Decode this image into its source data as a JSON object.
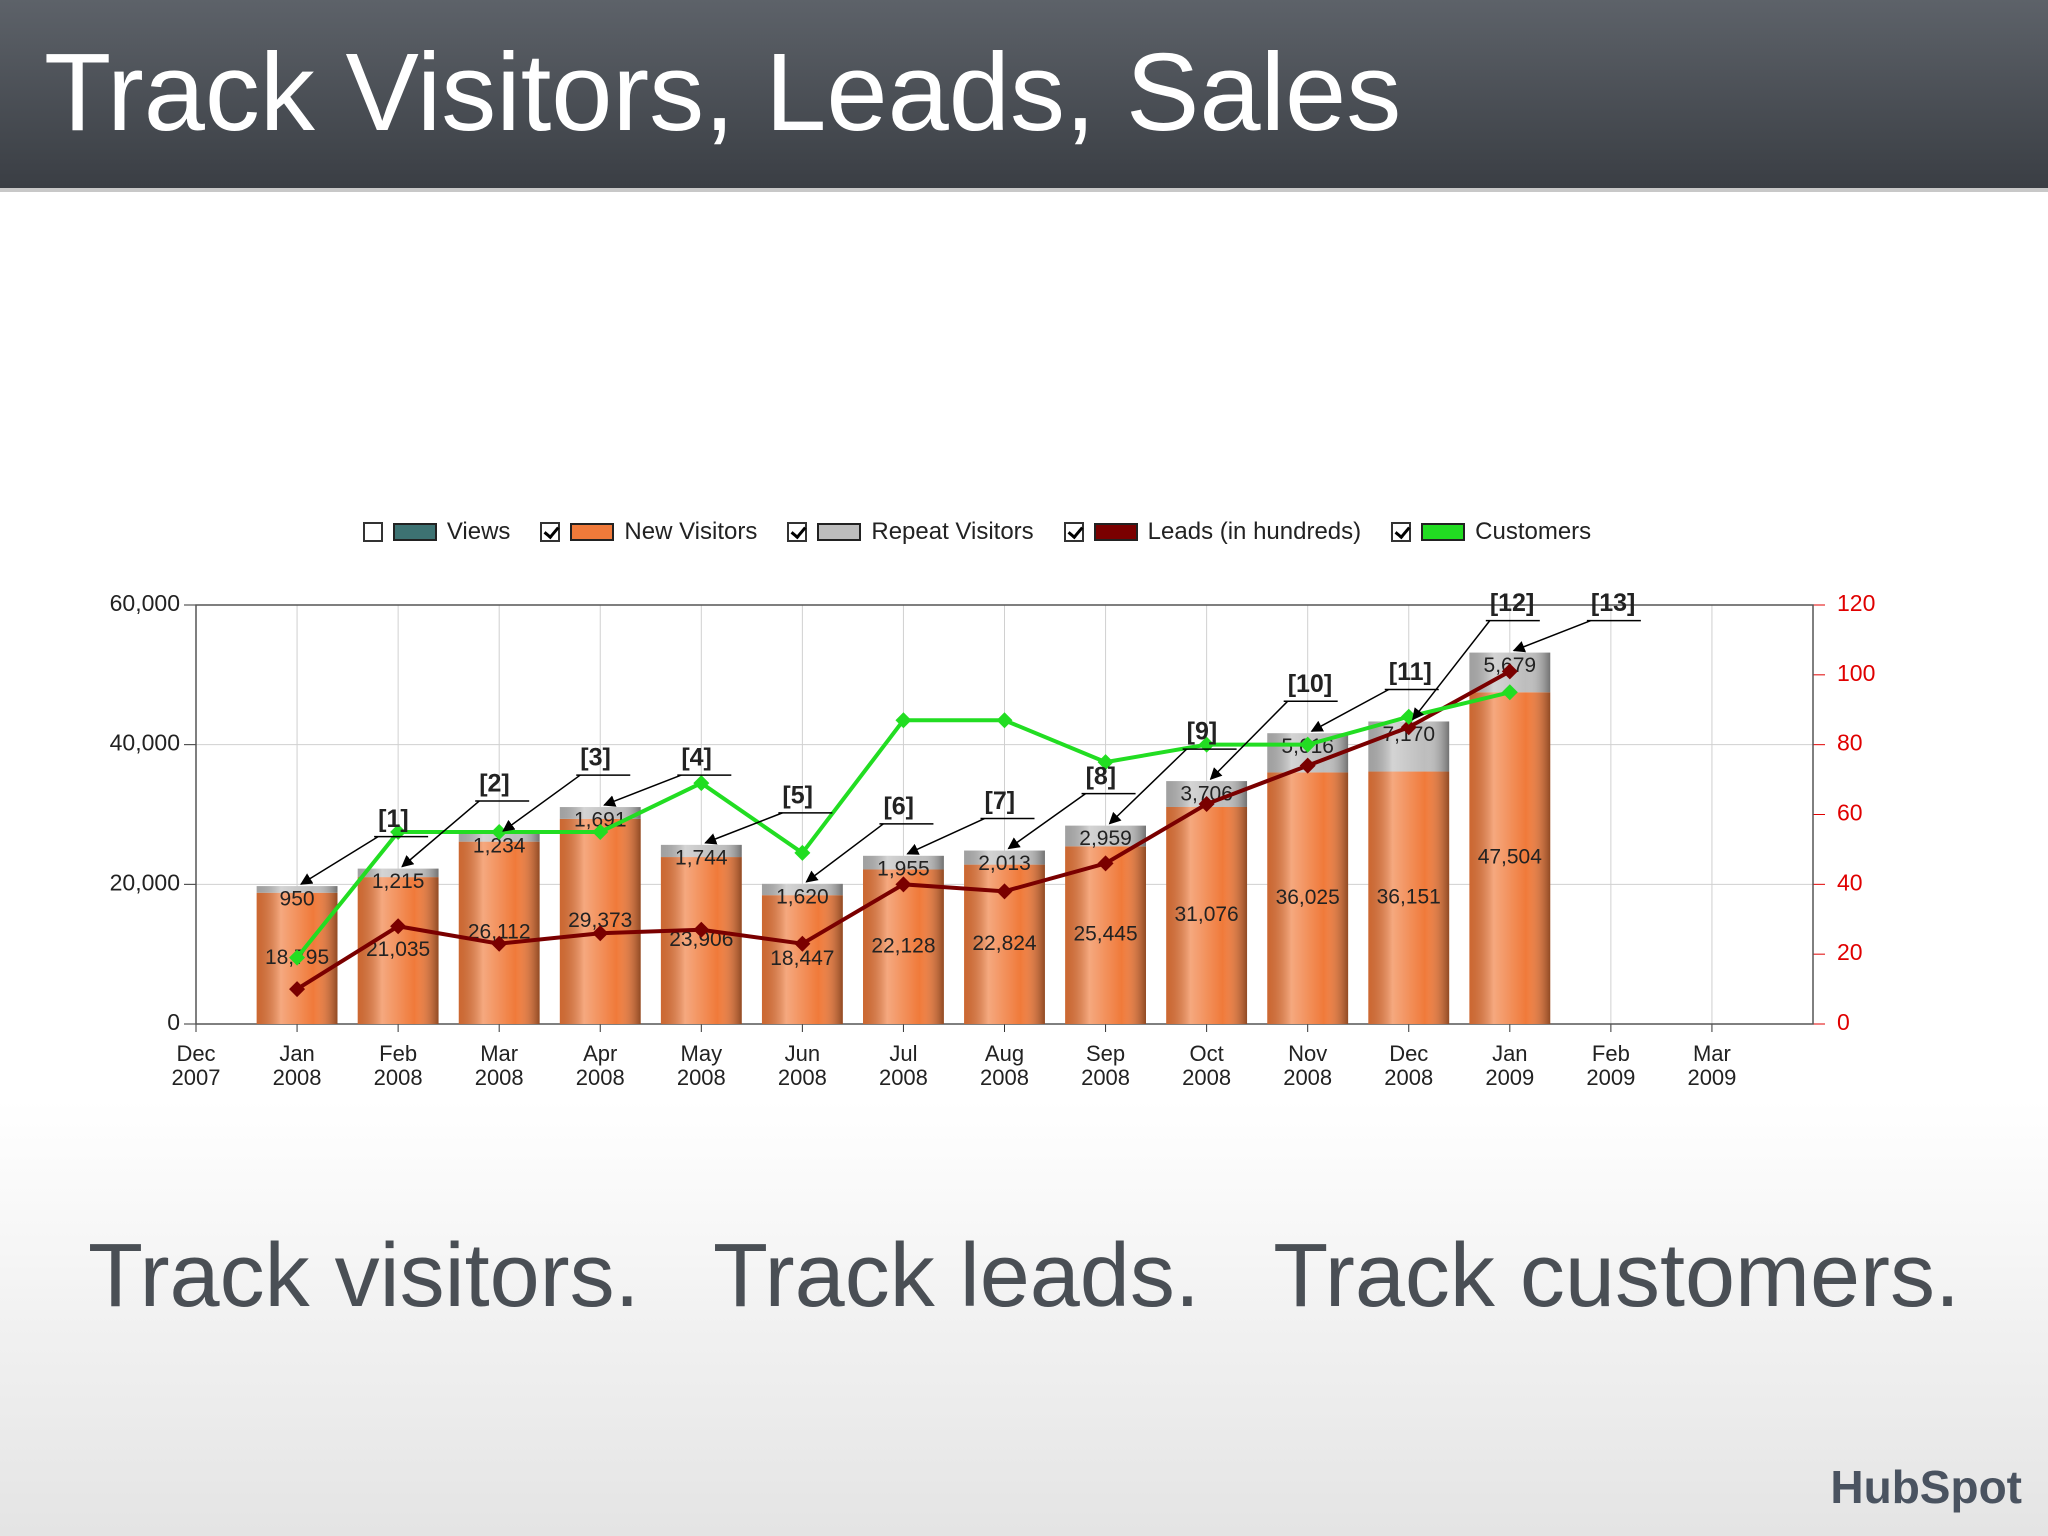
{
  "header": {
    "title": "Track Visitors, Leads, Sales"
  },
  "chart_data": {
    "type": "bar",
    "categories": [
      "Dec 2007",
      "Jan 2008",
      "Feb 2008",
      "Mar 2008",
      "Apr 2008",
      "May 2008",
      "Jun 2008",
      "Jul 2008",
      "Aug 2008",
      "Sep 2008",
      "Oct 2008",
      "Nov 2008",
      "Dec 2008",
      "Jan 2009",
      "Feb 2009",
      "Mar 2009"
    ],
    "series": [
      {
        "name": "Views",
        "color": "#3d7272",
        "checked": false,
        "values": [
          null,
          null,
          null,
          null,
          null,
          null,
          null,
          null,
          null,
          null,
          null,
          null,
          null,
          null,
          null,
          null
        ]
      },
      {
        "name": "New Visitors",
        "color": "#f07a3a",
        "checked": true,
        "stack": true,
        "values": [
          null,
          18795,
          21035,
          26112,
          29373,
          23906,
          18447,
          22128,
          22824,
          25445,
          31076,
          36025,
          36151,
          47504,
          null,
          null
        ],
        "value_labels": [
          null,
          "18,795",
          "21,035",
          "26,112",
          "29,373",
          "23,906",
          "18,447",
          "22,128",
          "22,824",
          "25,445",
          "31,076",
          "36,025",
          "36,151",
          "47,504",
          null,
          null
        ]
      },
      {
        "name": "Repeat Visitors",
        "color": "#bdbdbd",
        "checked": true,
        "stack": true,
        "values": [
          null,
          950,
          1215,
          1234,
          1691,
          1744,
          1620,
          1955,
          2013,
          2959,
          3706,
          5616,
          7170,
          5679,
          null,
          null
        ],
        "value_labels": [
          null,
          "950",
          "1,215",
          "1,234",
          "1,691",
          "1,744",
          "1,620",
          "1,955",
          "2,013",
          "2,959",
          "3,706",
          "5,616",
          "7,170",
          "5,679",
          null,
          null
        ]
      },
      {
        "name": "Leads (in hundreds)",
        "color": "#7a0000",
        "checked": true,
        "axis": "y2",
        "values": [
          null,
          10,
          28,
          23,
          26,
          27,
          23,
          40,
          38,
          46,
          63,
          74,
          85,
          101,
          null,
          null
        ]
      },
      {
        "name": "Customers",
        "color": "#22dd22",
        "checked": true,
        "axis": "y2",
        "values": [
          null,
          19,
          55,
          55,
          55,
          69,
          49,
          87,
          87,
          75,
          80,
          80,
          88,
          95,
          null,
          null
        ]
      }
    ],
    "ylim": [
      0,
      60000
    ],
    "yticks": [
      0,
      {
        "value": 20000,
        "label": "20,000"
      },
      {
        "value": 40000,
        "label": "40,000"
      },
      {
        "value": 60000,
        "label": "60,000"
      }
    ],
    "y2lim": [
      0,
      120
    ],
    "y2ticks": [
      0,
      20,
      40,
      60,
      80,
      100,
      120
    ],
    "y2_color": "#e00000",
    "grid": true,
    "annotations": [
      "[1]",
      "[2]",
      "[3]",
      "[4]",
      "[5]",
      "[6]",
      "[7]",
      "[8]",
      "[9]",
      "[10]",
      "[11]",
      "[12]",
      "[13]"
    ]
  },
  "caption": "Track visitors.   Track leads.   Track customers.",
  "logo": "HubSpot"
}
